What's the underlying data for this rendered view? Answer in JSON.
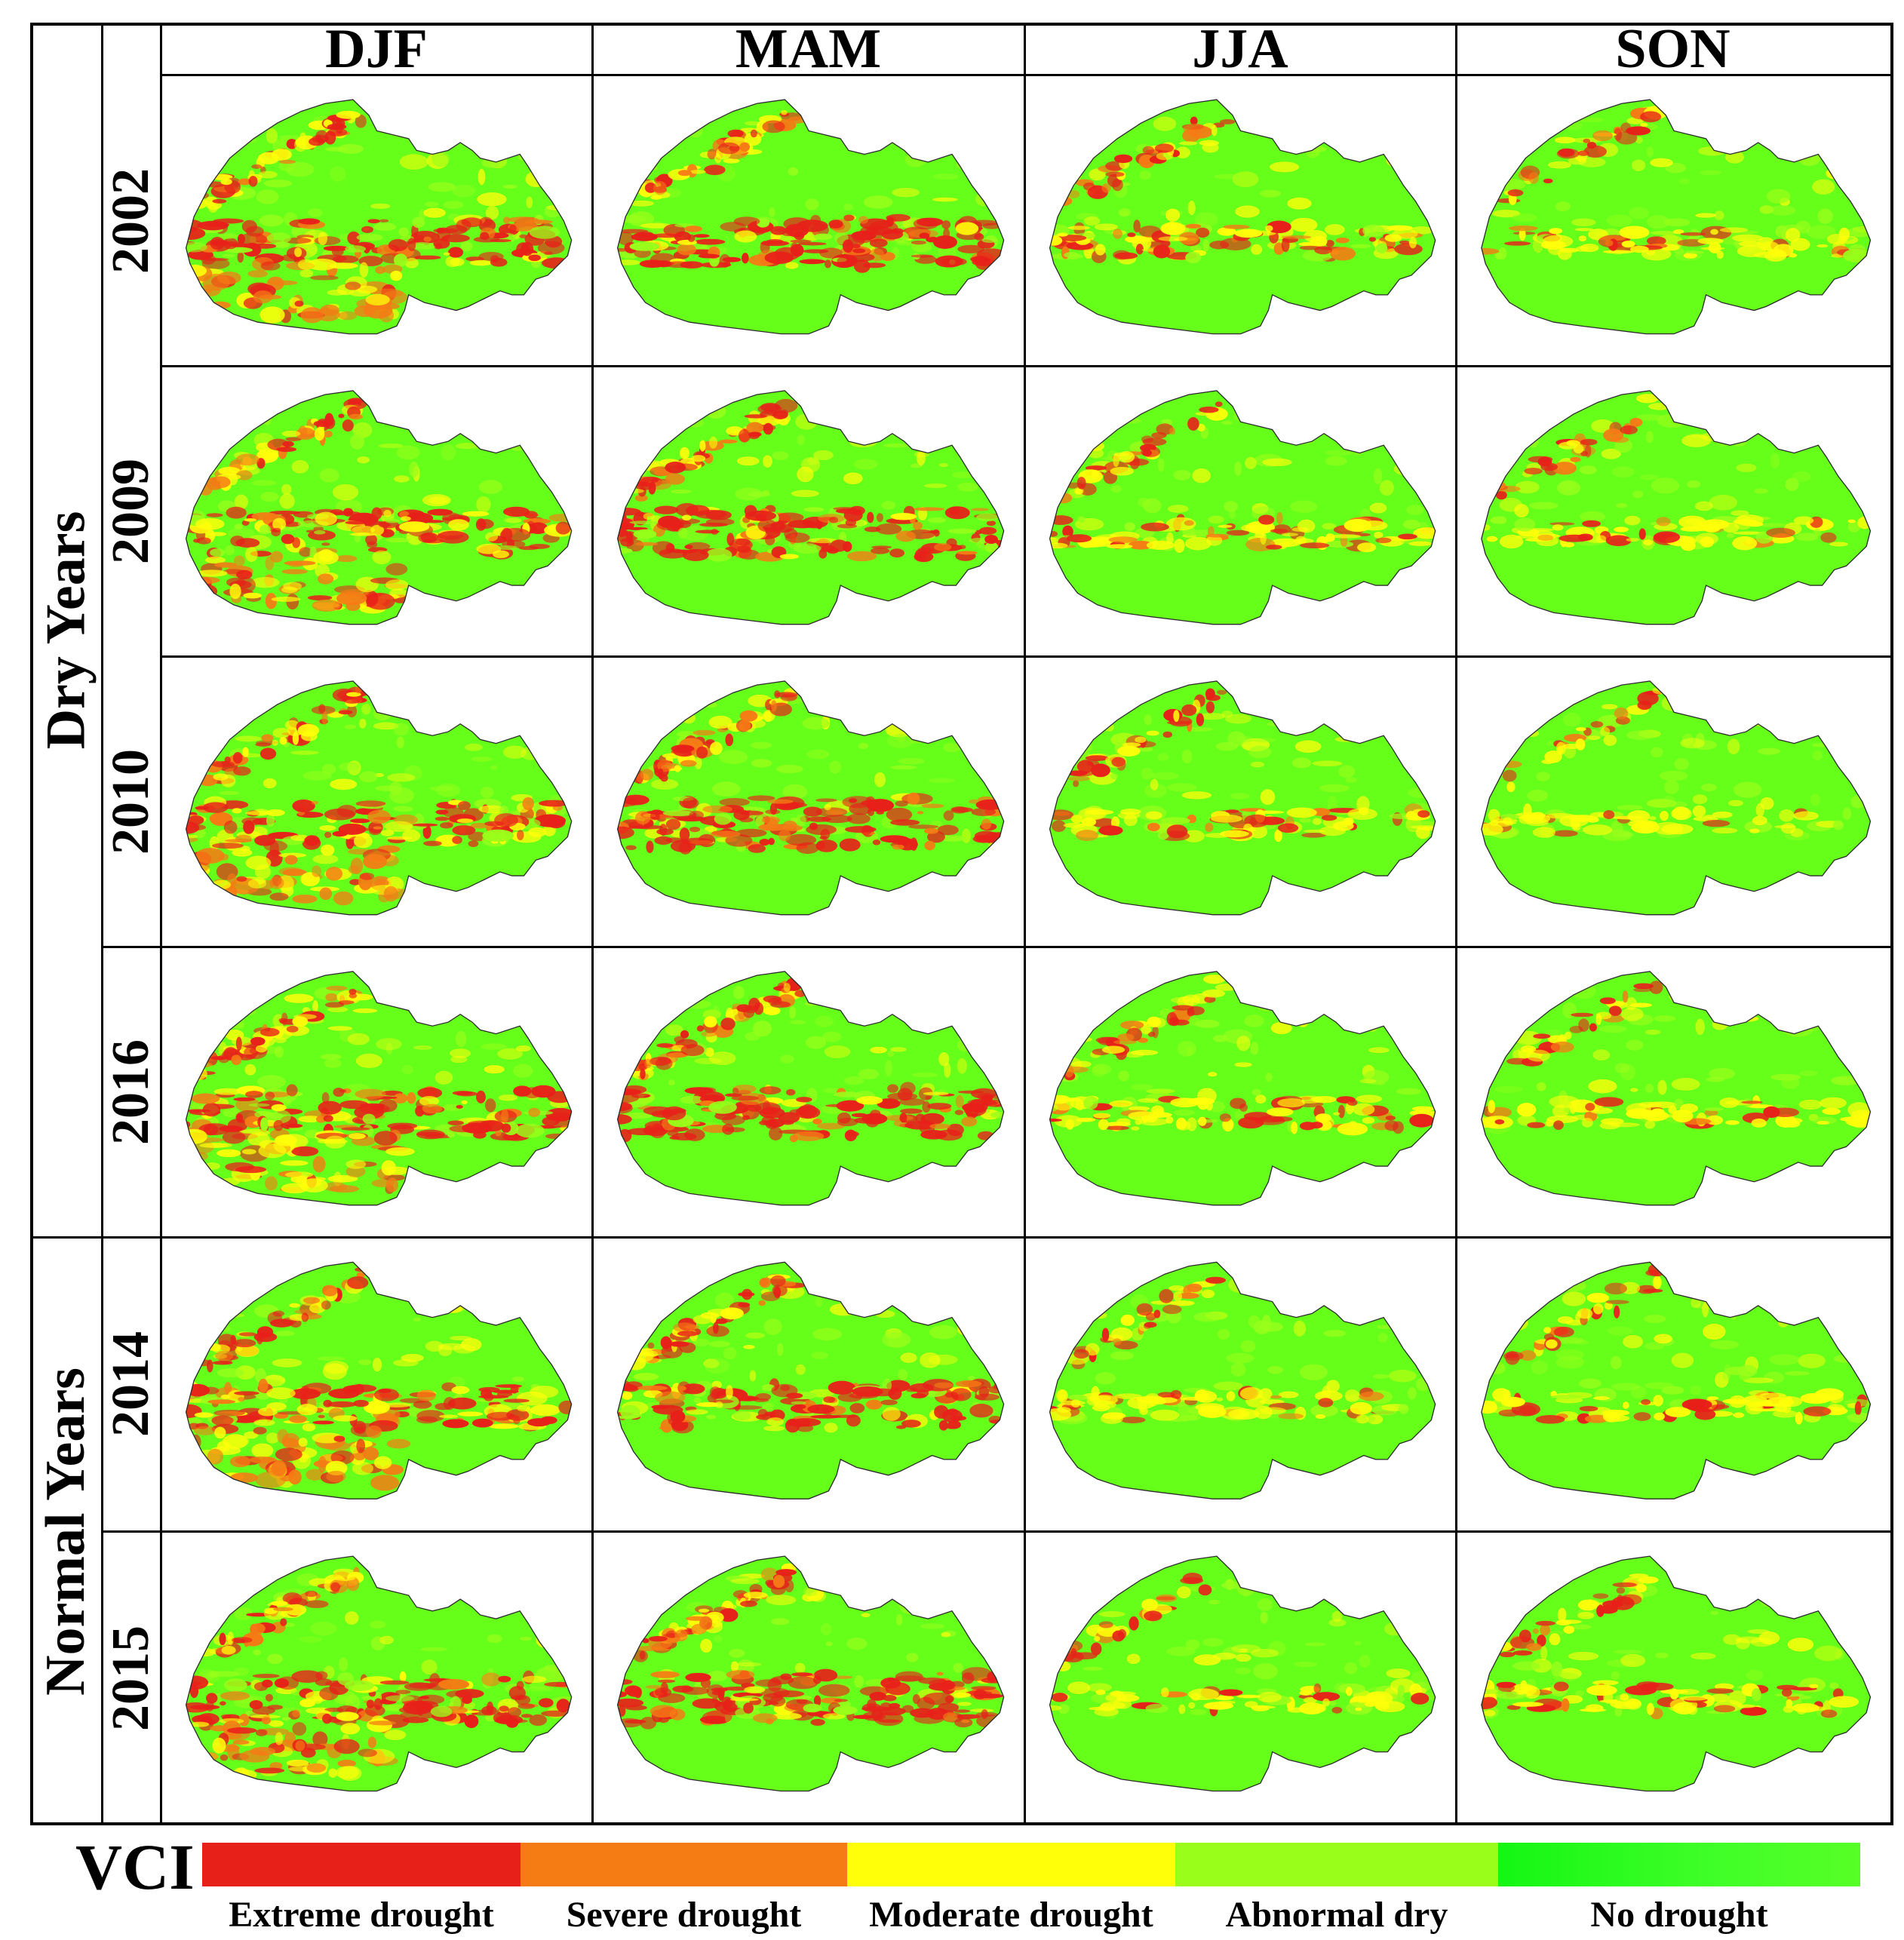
{
  "seasons": [
    "DJF",
    "MAM",
    "JJA",
    "SON"
  ],
  "groups": {
    "dry": "Dry Years",
    "normal": "Normal Years"
  },
  "years": [
    "2002",
    "2009",
    "2010",
    "2016",
    "2014",
    "2015"
  ],
  "legend": {
    "title": "VCI",
    "classes": [
      {
        "label": "Extreme drought",
        "color": "#e8201a"
      },
      {
        "label": "Severe drought",
        "color": "#f57b15"
      },
      {
        "label": "Moderate drought",
        "color": "#ffff0a"
      },
      {
        "label": "Abnormal dry",
        "color": "#99ff1a"
      },
      {
        "label": "No drought",
        "color": "#26ff26"
      }
    ]
  },
  "map_intensity": [
    [
      0.85,
      0.95,
      0.55,
      0.35
    ],
    [
      0.8,
      0.95,
      0.4,
      0.3
    ],
    [
      0.75,
      1.0,
      0.35,
      0.15
    ],
    [
      0.9,
      1.0,
      0.45,
      0.25
    ],
    [
      0.75,
      0.85,
      0.35,
      0.3
    ],
    [
      0.9,
      1.0,
      0.2,
      0.4
    ]
  ],
  "colors": {
    "background": "#ffffff",
    "gridline": "#000000",
    "land_base": "#66ff1a",
    "outline": "#2a2a2a"
  }
}
